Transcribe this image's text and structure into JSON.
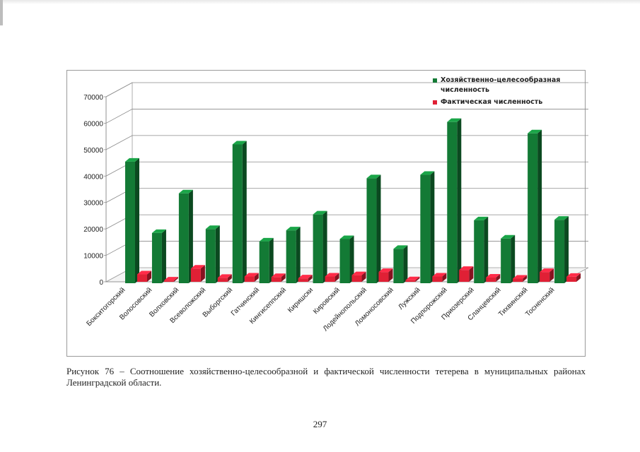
{
  "chart_data": {
    "type": "bar",
    "style": "3d-clustered",
    "categories": [
      "Бокситогорский",
      "Волосовский",
      "Волховский",
      "Всеволожский",
      "Выборгский",
      "Гатчинский",
      "Кингисеппский",
      "Киришски",
      "Кировский",
      "Лодейнопольский",
      "Ломоносовский",
      "Лужский",
      "Подпорожский",
      "Приозерский",
      "Сланцевский",
      "Тихвинский",
      "Тосненский"
    ],
    "series": [
      {
        "name": "Хозяйственно-целесообразная численность",
        "color": "#137a35",
        "values": [
          46000,
          19000,
          34000,
          20500,
          52500,
          15800,
          20000,
          26000,
          16700,
          39700,
          13000,
          41000,
          61000,
          23800,
          16900,
          56700,
          24000
        ]
      },
      {
        "name": "Фактическая численность",
        "color": "#e02035",
        "values": [
          2800,
          500,
          5000,
          1500,
          2000,
          1800,
          1300,
          2000,
          2500,
          3700,
          600,
          2000,
          4500,
          1600,
          1200,
          3700,
          1900
        ]
      }
    ],
    "ylim": [
      0,
      70000
    ],
    "yticks": [
      0,
      10000,
      20000,
      30000,
      40000,
      50000,
      60000,
      70000
    ],
    "ytick_labels": [
      "0",
      "10000",
      "20000",
      "30000",
      "40000",
      "50000",
      "60000",
      "70000"
    ],
    "legend_position": "top-right",
    "grid": true,
    "title": "",
    "xlabel": "",
    "ylabel": ""
  },
  "caption": "Рисунок 76 – Соотношение хозяйственно-целесообразной и фактической численности тетерева в муниципальных районах Ленинградской области.",
  "page_number": "297"
}
